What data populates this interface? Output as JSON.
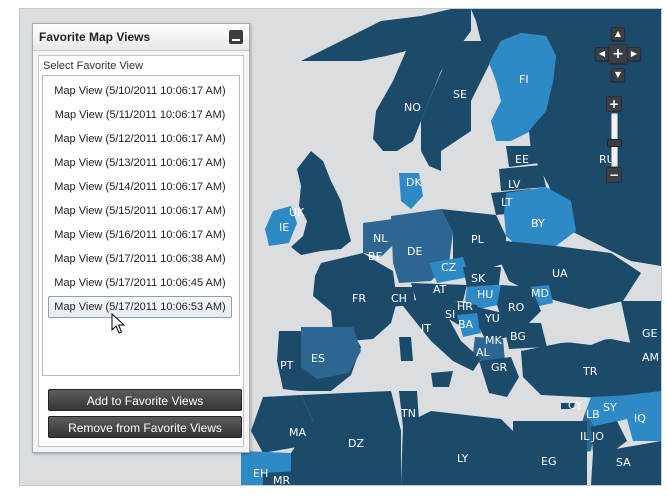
{
  "panel": {
    "title": "Favorite Map Views",
    "select_label": "Select Favorite View",
    "favorite_views": [
      "Map View (5/10/2011 10:06:17 AM)",
      "Map View (5/11/2011 10:06:17 AM)",
      "Map View (5/12/2011 10:06:17 AM)",
      "Map View (5/13/2011 10:06:17 AM)",
      "Map View (5/14/2011 10:06:17 AM)",
      "Map View (5/15/2011 10:06:17 AM)",
      "Map View (5/16/2011 10:06:17 AM)",
      "Map View (5/17/2011 10:06:38 AM)",
      "Map View (5/17/2011 10:06:45 AM)",
      "Map View (5/17/2011 10:06:53 AM)"
    ],
    "selected_index": 9,
    "add_button": "Add to Favorite Views",
    "remove_button": "Remove from Favorite Views"
  },
  "map": {
    "country_labels": [
      "NO",
      "SE",
      "FI",
      "RU",
      "EE",
      "LV",
      "LT",
      "DK",
      "UK",
      "IE",
      "NL",
      "BE",
      "DE",
      "PL",
      "BY",
      "UA",
      "CZ",
      "SK",
      "MD",
      "FR",
      "CH",
      "AT",
      "HU",
      "RO",
      "HR",
      "SI",
      "BA",
      "YU",
      "BG",
      "IT",
      "MK",
      "AL",
      "GR",
      "TR",
      "PT",
      "ES",
      "TN",
      "DZ",
      "MA",
      "LY",
      "EG",
      "SY",
      "LB",
      "CY",
      "IQ",
      "IL",
      "JO",
      "SA",
      "GE",
      "AM",
      "EH",
      "MR"
    ],
    "colors": {
      "sea": "#dadee0",
      "land_dark": "#1b4a6b",
      "land_mid": "#2d6690",
      "land_light": "#2e8ac6"
    }
  },
  "zoom": {
    "level": 0.55
  },
  "icons": {
    "nav_up": "chevron-up-icon",
    "nav_down": "chevron-down-icon",
    "nav_left": "chevron-left-icon",
    "nav_right": "chevron-right-icon",
    "nav_center": "plus-icon",
    "zoom_in": "plus-icon",
    "zoom_out": "minus-icon",
    "cursor": "mouse-pointer-icon"
  }
}
